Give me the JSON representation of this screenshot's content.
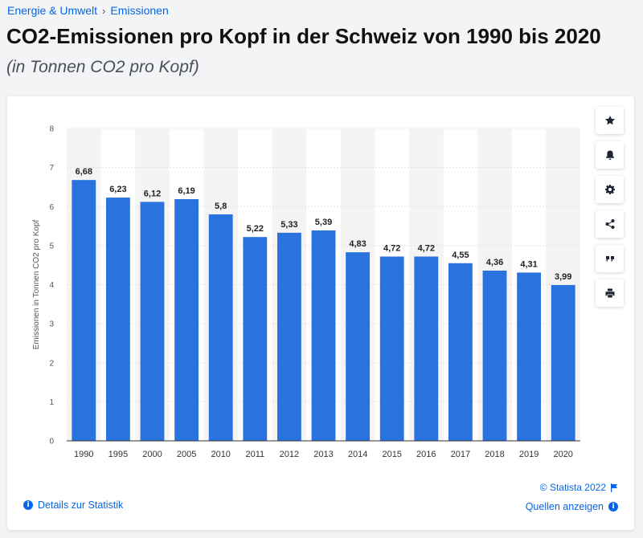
{
  "breadcrumb": {
    "item1": "Energie & Umwelt",
    "separator": "›",
    "item2": "Emissionen"
  },
  "page": {
    "title": "CO2-Emissionen pro Kopf in der Schweiz von 1990 bis 2020",
    "subtitle": "(in Tonnen CO2 pro Kopf)"
  },
  "colors": {
    "bar": "#2a72de",
    "link": "#0666e5",
    "band": "#f4f4f4"
  },
  "actions": [
    {
      "name": "favorite-star-button",
      "icon": "star-icon"
    },
    {
      "name": "notification-bell-button",
      "icon": "bell-icon"
    },
    {
      "name": "settings-gear-button",
      "icon": "gear-icon"
    },
    {
      "name": "share-button",
      "icon": "share-icon"
    },
    {
      "name": "cite-quote-button",
      "icon": "quote-icon"
    },
    {
      "name": "print-button",
      "icon": "printer-icon"
    }
  ],
  "footer": {
    "credit": "© Statista 2022",
    "details": "Details zur Statistik",
    "sources": "Quellen anzeigen"
  },
  "chart_data": {
    "type": "bar",
    "categories": [
      "1990",
      "1995",
      "2000",
      "2005",
      "2010",
      "2011",
      "2012",
      "2013",
      "2014",
      "2015",
      "2016",
      "2017",
      "2018",
      "2019",
      "2020"
    ],
    "values": [
      6.68,
      6.23,
      6.12,
      6.19,
      5.8,
      5.22,
      5.33,
      5.39,
      4.83,
      4.72,
      4.72,
      4.55,
      4.36,
      4.31,
      3.99
    ],
    "value_labels": [
      "6,68",
      "6,23",
      "6,12",
      "6,19",
      "5,8",
      "5,22",
      "5,33",
      "5,39",
      "4,83",
      "4,72",
      "4,72",
      "4,55",
      "4,36",
      "4,31",
      "3,99"
    ],
    "ylabel": "Emissionen in Tonnen CO2 pro Kopf",
    "ylim": [
      0,
      8
    ],
    "yticks": [
      0,
      1,
      2,
      3,
      4,
      5,
      6,
      7,
      8
    ],
    "grid": true,
    "alternating_bands": true
  }
}
